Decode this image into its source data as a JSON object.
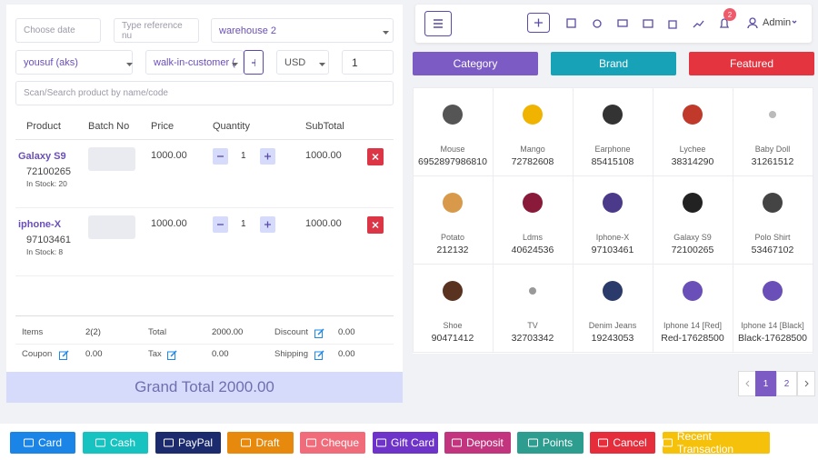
{
  "filters": {
    "date_placeholder": "Choose date",
    "reference_placeholder": "Type reference nu",
    "warehouse": "warehouse 2",
    "biller": "yousuf (aks)",
    "customer": "walk-in-customer (",
    "currency": "USD",
    "exchange_rate": "1",
    "scan_placeholder": "Scan/Search product by name/code"
  },
  "cart": {
    "columns": [
      "Product",
      "Batch No",
      "Price",
      "Quantity",
      "SubTotal"
    ],
    "rows": [
      {
        "name": "Galaxy S9",
        "code": "72100265",
        "stock": "In Stock: 20",
        "price": "1000.00",
        "qty": "1",
        "subtotal": "1000.00"
      },
      {
        "name": "iphone-X",
        "code": "97103461",
        "stock": "In Stock: 8",
        "price": "1000.00",
        "qty": "1",
        "subtotal": "1000.00"
      }
    ]
  },
  "summary": [
    {
      "label": "Items",
      "value": "2(2)"
    },
    {
      "label": "Total",
      "value": "2000.00"
    },
    {
      "label": "Discount",
      "value": "0.00"
    },
    {
      "label": "Coupon",
      "value": "0.00"
    },
    {
      "label": "Tax",
      "value": "0.00"
    },
    {
      "label": "Shipping",
      "value": "0.00"
    }
  ],
  "grand_total": "Grand Total 2000.00",
  "header": {
    "notification_count": "2",
    "user": "Admin"
  },
  "tabs": [
    "Category",
    "Brand",
    "Featured"
  ],
  "products": [
    {
      "name": "Mouse",
      "code": "6952897986810"
    },
    {
      "name": "Mango",
      "code": "72782608"
    },
    {
      "name": "Earphone",
      "code": "85415108"
    },
    {
      "name": "Lychee",
      "code": "38314290"
    },
    {
      "name": "Baby Doll",
      "code": "31261512"
    },
    {
      "name": "Potato",
      "code": "212132"
    },
    {
      "name": "Ldms",
      "code": "40624536"
    },
    {
      "name": "Iphone-X",
      "code": "97103461"
    },
    {
      "name": "Galaxy S9",
      "code": "72100265"
    },
    {
      "name": "Polo Shirt",
      "code": "53467102"
    },
    {
      "name": "Shoe",
      "code": "90471412"
    },
    {
      "name": "TV",
      "code": "32703342"
    },
    {
      "name": "Denim Jeans",
      "code": "19243053"
    },
    {
      "name": "Iphone 14 [Red]",
      "code": "Red-17628500"
    },
    {
      "name": "Iphone 14 [Black]",
      "code": "Black-17628500"
    }
  ],
  "pagination": [
    "1",
    "2"
  ],
  "payment_buttons": [
    "Card",
    "Cash",
    "PayPal",
    "Draft",
    "Cheque",
    "Gift Card",
    "Deposit",
    "Points",
    "Cancel",
    "Recent Transaction"
  ]
}
